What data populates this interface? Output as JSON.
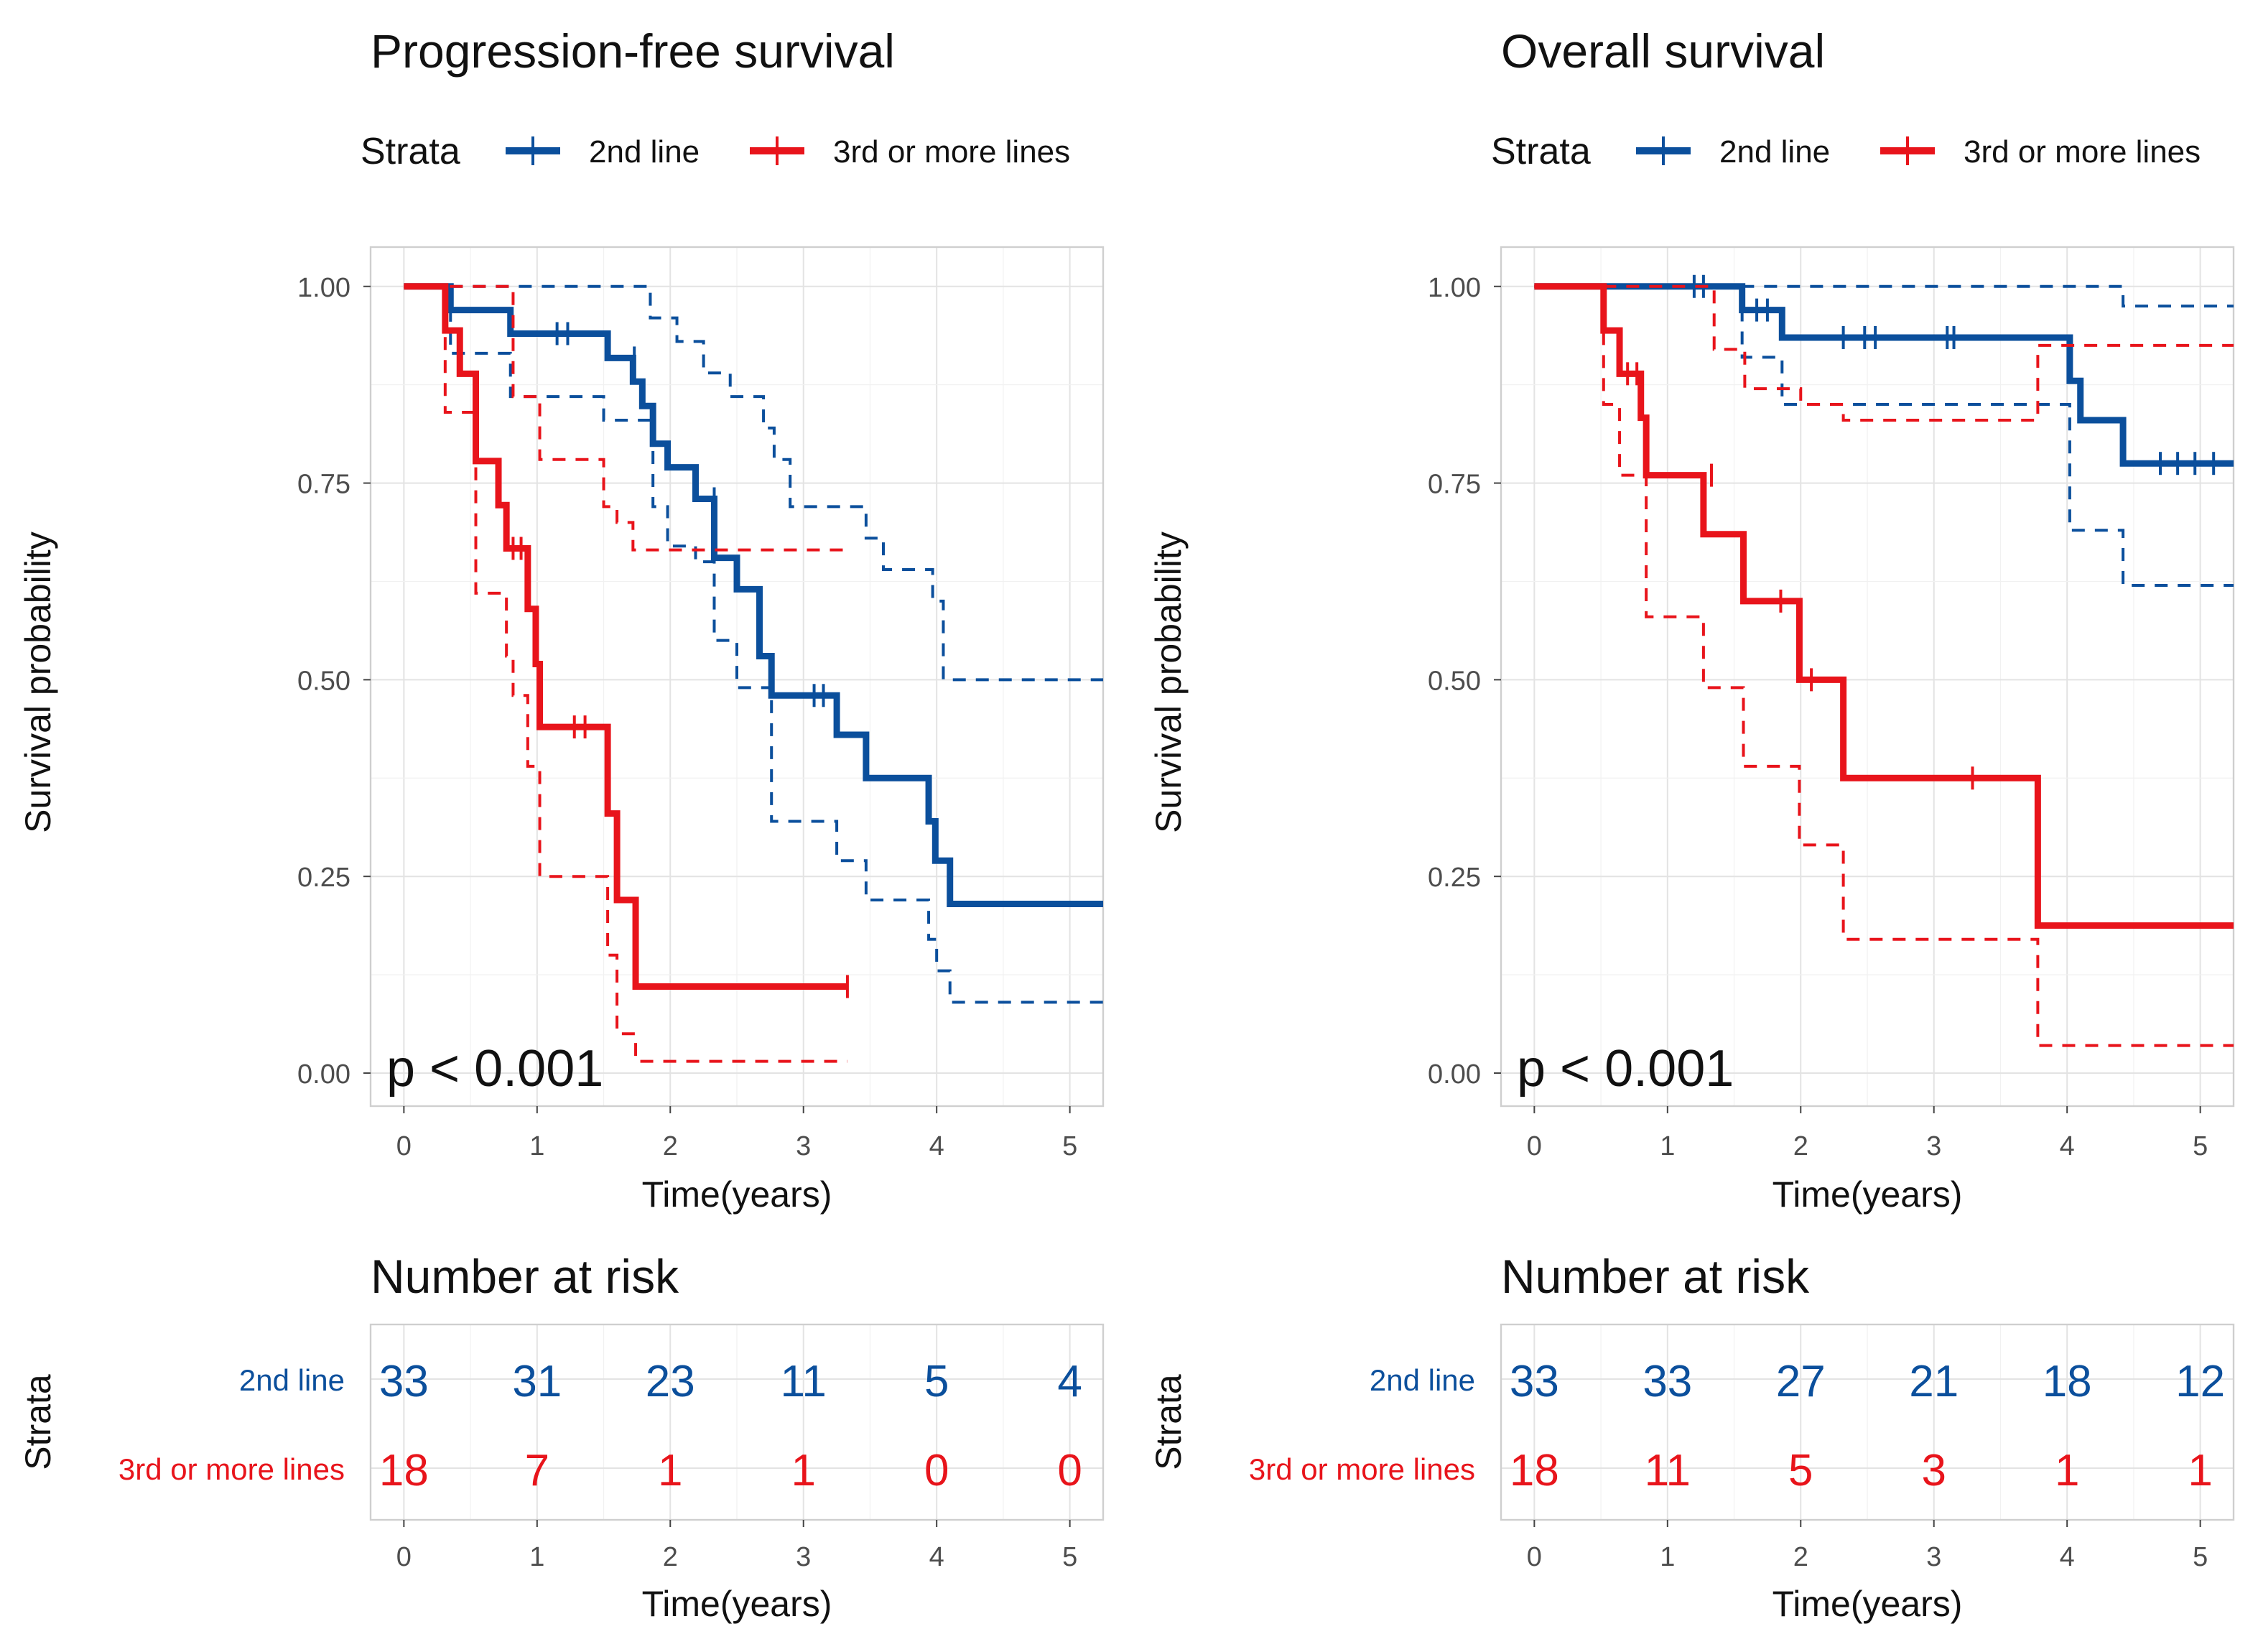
{
  "chart_data": [
    {
      "type": "line",
      "title": "Progression-free survival",
      "xlabel": "Time(years)",
      "ylabel": "Survival probability",
      "xlim": [
        -0.25,
        5.25
      ],
      "ylim": [
        -0.042,
        1.05
      ],
      "xticks": [
        "0",
        "1",
        "2",
        "3",
        "4",
        "5"
      ],
      "yticks": [
        "0.00",
        "0.25",
        "0.50",
        "0.75",
        "1.00"
      ],
      "grid": true,
      "legend": {
        "title": "Strata",
        "placement": "top",
        "entries": [
          "2nd line",
          "3rd or more lines"
        ]
      },
      "annotation": "p < 0.001",
      "series": [
        {
          "name": "2nd line",
          "color": "#0b4f9c",
          "steps": [
            [
              0,
              1
            ],
            [
              0.35,
              0.97
            ],
            [
              0.8,
              0.94
            ],
            [
              1.53,
              0.909
            ],
            [
              1.72,
              0.879
            ],
            [
              1.79,
              0.848
            ],
            [
              1.87,
              0.8
            ],
            [
              1.98,
              0.77
            ],
            [
              2.19,
              0.73
            ],
            [
              2.33,
              0.655
            ],
            [
              2.5,
              0.615
            ],
            [
              2.67,
              0.53
            ],
            [
              2.76,
              0.48
            ],
            [
              3.25,
              0.43
            ],
            [
              3.47,
              0.375
            ],
            [
              3.94,
              0.32
            ],
            [
              3.99,
              0.27
            ],
            [
              4.1,
              0.215
            ],
            [
              5.25,
              0.215
            ]
          ],
          "censored": [
            [
              1.15,
              0.94
            ],
            [
              1.23,
              0.94
            ],
            [
              1.73,
              0.909
            ],
            [
              2.33,
              0.73
            ],
            [
              3.08,
              0.48
            ],
            [
              3.15,
              0.48
            ]
          ],
          "upper": [
            [
              0,
              1
            ],
            [
              1.85,
              0.96
            ],
            [
              2.05,
              0.93
            ],
            [
              2.25,
              0.89
            ],
            [
              2.45,
              0.86
            ],
            [
              2.7,
              0.82
            ],
            [
              2.78,
              0.78
            ],
            [
              2.9,
              0.72
            ],
            [
              3.47,
              0.68
            ],
            [
              3.6,
              0.64
            ],
            [
              3.97,
              0.6
            ],
            [
              4.05,
              0.5
            ],
            [
              5.25,
              0.5
            ]
          ],
          "lower": [
            [
              0,
              1
            ],
            [
              0.35,
              0.915
            ],
            [
              0.8,
              0.86
            ],
            [
              1.5,
              0.83
            ],
            [
              1.87,
              0.72
            ],
            [
              1.98,
              0.67
            ],
            [
              2.19,
              0.65
            ],
            [
              2.33,
              0.55
            ],
            [
              2.5,
              0.49
            ],
            [
              2.76,
              0.32
            ],
            [
              3.25,
              0.27
            ],
            [
              3.47,
              0.22
            ],
            [
              3.94,
              0.17
            ],
            [
              4.0,
              0.13
            ],
            [
              4.1,
              0.09
            ],
            [
              5.25,
              0.09
            ]
          ]
        },
        {
          "name": "3rd or more lines",
          "color": "#e8141b",
          "steps": [
            [
              0,
              1
            ],
            [
              0.31,
              0.944
            ],
            [
              0.42,
              0.889
            ],
            [
              0.54,
              0.778
            ],
            [
              0.71,
              0.722
            ],
            [
              0.77,
              0.667
            ],
            [
              0.93,
              0.59
            ],
            [
              0.99,
              0.52
            ],
            [
              1.02,
              0.44
            ],
            [
              1.53,
              0.33
            ],
            [
              1.6,
              0.22
            ],
            [
              1.74,
              0.11
            ],
            [
              3.33,
              0.11
            ]
          ],
          "censored": [
            [
              0.82,
              0.667
            ],
            [
              0.88,
              0.667
            ],
            [
              1.28,
              0.44
            ],
            [
              1.36,
              0.44
            ],
            [
              3.33,
              0.11
            ]
          ],
          "upper": [
            [
              0,
              1
            ],
            [
              0.82,
              0.86
            ],
            [
              1.02,
              0.78
            ],
            [
              1.5,
              0.72
            ],
            [
              1.6,
              0.7
            ],
            [
              1.72,
              0.665
            ],
            [
              3.33,
              0.665
            ]
          ],
          "lower": [
            [
              0,
              1
            ],
            [
              0.31,
              0.84
            ],
            [
              0.54,
              0.61
            ],
            [
              0.77,
              0.53
            ],
            [
              0.82,
              0.48
            ],
            [
              0.93,
              0.39
            ],
            [
              1.02,
              0.25
            ],
            [
              1.53,
              0.15
            ],
            [
              1.6,
              0.05
            ],
            [
              1.74,
              0.015
            ],
            [
              3.33,
              0.015
            ]
          ]
        }
      ],
      "risk_table": {
        "title": "Number at risk",
        "ylabel": "Strata",
        "xlabel": "Time(years)",
        "times": [
          0,
          1,
          2,
          3,
          4,
          5
        ],
        "rows": [
          {
            "label": "2nd line",
            "values": [
              "33",
              "31",
              "23",
              "11",
              "5",
              "4"
            ]
          },
          {
            "label": "3rd or more lines",
            "values": [
              "18",
              "7",
              "1",
              "1",
              "0",
              "0"
            ]
          }
        ]
      }
    },
    {
      "type": "line",
      "title": "Overall survival",
      "xlabel": "Time(years)",
      "ylabel": "Survival probability",
      "xlim": [
        -0.25,
        5.25
      ],
      "ylim": [
        -0.042,
        1.05
      ],
      "xticks": [
        "0",
        "1",
        "2",
        "3",
        "4",
        "5"
      ],
      "yticks": [
        "0.00",
        "0.25",
        "0.50",
        "0.75",
        "1.00"
      ],
      "grid": true,
      "legend": {
        "title": "Strata",
        "placement": "top",
        "entries": [
          "2nd line",
          "3rd or more lines"
        ]
      },
      "annotation": "p < 0.001",
      "series": [
        {
          "name": "2nd line",
          "color": "#0b4f9c",
          "steps": [
            [
              0,
              1
            ],
            [
              1.56,
              0.97
            ],
            [
              1.86,
              0.935
            ],
            [
              4.02,
              0.88
            ],
            [
              4.1,
              0.83
            ],
            [
              4.42,
              0.775
            ],
            [
              5.25,
              0.775
            ]
          ],
          "censored": [
            [
              1.2,
              1
            ],
            [
              1.27,
              1
            ],
            [
              1.67,
              0.97
            ],
            [
              1.75,
              0.97
            ],
            [
              2.32,
              0.935
            ],
            [
              2.48,
              0.935
            ],
            [
              2.56,
              0.935
            ],
            [
              3.1,
              0.935
            ],
            [
              3.15,
              0.935
            ],
            [
              4.7,
              0.775
            ],
            [
              4.83,
              0.775
            ],
            [
              4.96,
              0.775
            ],
            [
              5.1,
              0.775
            ]
          ],
          "upper": [
            [
              0,
              1
            ],
            [
              4.42,
              0.975
            ],
            [
              5.25,
              0.975
            ]
          ],
          "lower": [
            [
              0,
              1
            ],
            [
              1.56,
              0.91
            ],
            [
              1.86,
              0.85
            ],
            [
              4.02,
              0.69
            ],
            [
              4.42,
              0.62
            ],
            [
              5.25,
              0.62
            ]
          ]
        },
        {
          "name": "3rd or more lines",
          "color": "#e8141b",
          "steps": [
            [
              0,
              1
            ],
            [
              0.52,
              0.944
            ],
            [
              0.64,
              0.889
            ],
            [
              0.8,
              0.833
            ],
            [
              0.84,
              0.76
            ],
            [
              1.27,
              0.685
            ],
            [
              1.57,
              0.6
            ],
            [
              1.99,
              0.5
            ],
            [
              2.32,
              0.375
            ],
            [
              3.78,
              0.1875
            ],
            [
              5.25,
              0.1875
            ]
          ],
          "censored": [
            [
              0.7,
              0.889
            ],
            [
              0.77,
              0.889
            ],
            [
              1.33,
              0.76
            ],
            [
              1.85,
              0.6
            ],
            [
              2.08,
              0.5
            ],
            [
              3.29,
              0.375
            ]
          ],
          "upper": [
            [
              0,
              1
            ],
            [
              1.35,
              0.92
            ],
            [
              1.58,
              0.87
            ],
            [
              2.0,
              0.85
            ],
            [
              2.32,
              0.83
            ],
            [
              3.78,
              0.925
            ],
            [
              5.25,
              0.925
            ]
          ],
          "lower": [
            [
              0,
              1
            ],
            [
              0.52,
              0.85
            ],
            [
              0.64,
              0.76
            ],
            [
              0.84,
              0.58
            ],
            [
              1.27,
              0.49
            ],
            [
              1.57,
              0.39
            ],
            [
              1.99,
              0.29
            ],
            [
              2.32,
              0.17
            ],
            [
              3.78,
              0.035
            ],
            [
              5.25,
              0.035
            ]
          ]
        }
      ],
      "risk_table": {
        "title": "Number at risk",
        "ylabel": "Strata",
        "xlabel": "Time(years)",
        "times": [
          0,
          1,
          2,
          3,
          4,
          5
        ],
        "rows": [
          {
            "label": "2nd line",
            "values": [
              "33",
              "33",
              "27",
              "21",
              "18",
              "12"
            ]
          },
          {
            "label": "3rd or more lines",
            "values": [
              "18",
              "11",
              "5",
              "3",
              "1",
              "1"
            ]
          }
        ]
      }
    }
  ]
}
